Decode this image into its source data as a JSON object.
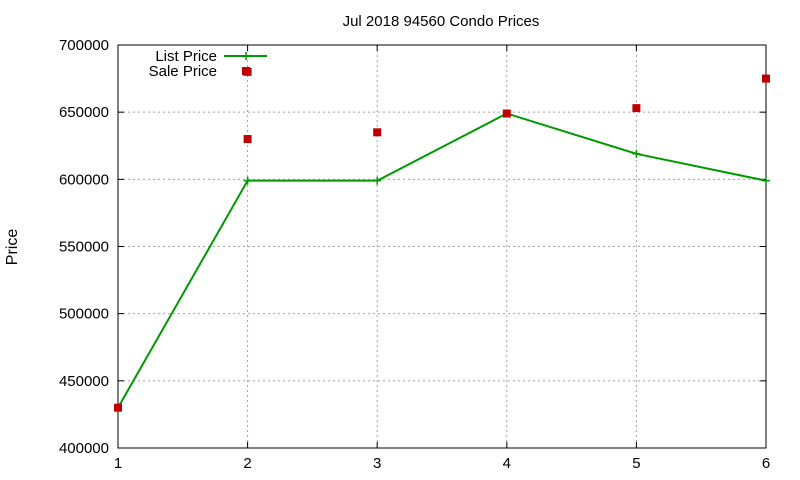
{
  "chart_data": {
    "type": "line",
    "title": "Jul 2018 94560 Condo Prices",
    "xlabel": "",
    "ylabel": "Price",
    "xlim": [
      1,
      6
    ],
    "ylim": [
      400000,
      700000
    ],
    "xticks": [
      1,
      2,
      3,
      4,
      5,
      6
    ],
    "yticks": [
      400000,
      450000,
      500000,
      550000,
      600000,
      650000,
      700000
    ],
    "grid": true,
    "legend": "top-left",
    "series": [
      {
        "name": "List Price",
        "kind": "line+points",
        "color": "#009900",
        "marker": "plus",
        "x": [
          1,
          2,
          3,
          4,
          5,
          6
        ],
        "y": [
          430000,
          599000,
          599000,
          649000,
          619000,
          599000
        ]
      },
      {
        "name": "Sale Price",
        "kind": "points",
        "color": "#c00000",
        "marker": "square",
        "x": [
          1,
          2,
          2,
          3,
          4,
          5,
          6
        ],
        "y": [
          430000,
          630000,
          680000,
          635000,
          649000,
          653000,
          675000
        ]
      }
    ]
  }
}
